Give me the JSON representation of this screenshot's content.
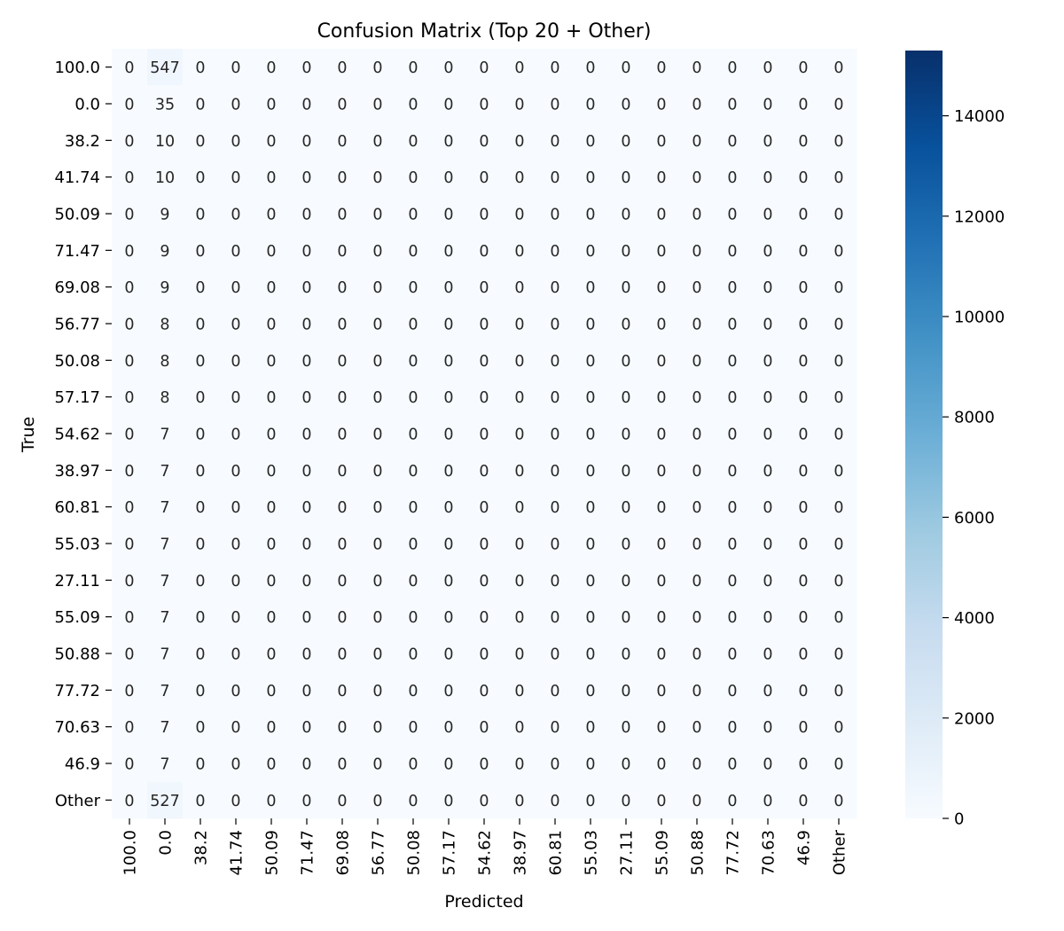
{
  "chart_data": {
    "type": "heatmap",
    "title": "Confusion Matrix (Top 20 + Other)",
    "xlabel": "Predicted",
    "ylabel": "True",
    "row_labels": [
      "100.0",
      "0.0",
      "38.2",
      "41.74",
      "50.09",
      "71.47",
      "69.08",
      "56.77",
      "50.08",
      "57.17",
      "54.62",
      "38.97",
      "60.81",
      "55.03",
      "27.11",
      "55.09",
      "50.88",
      "77.72",
      "70.63",
      "46.9",
      "Other"
    ],
    "col_labels": [
      "100.0",
      "0.0",
      "38.2",
      "41.74",
      "50.09",
      "71.47",
      "69.08",
      "56.77",
      "50.08",
      "57.17",
      "54.62",
      "38.97",
      "60.81",
      "55.03",
      "27.11",
      "55.09",
      "50.88",
      "77.72",
      "70.63",
      "46.9",
      "Other"
    ],
    "matrix": [
      [
        0,
        547,
        0,
        0,
        0,
        0,
        0,
        0,
        0,
        0,
        0,
        0,
        0,
        0,
        0,
        0,
        0,
        0,
        0,
        0,
        0
      ],
      [
        0,
        35,
        0,
        0,
        0,
        0,
        0,
        0,
        0,
        0,
        0,
        0,
        0,
        0,
        0,
        0,
        0,
        0,
        0,
        0,
        0
      ],
      [
        0,
        10,
        0,
        0,
        0,
        0,
        0,
        0,
        0,
        0,
        0,
        0,
        0,
        0,
        0,
        0,
        0,
        0,
        0,
        0,
        0
      ],
      [
        0,
        10,
        0,
        0,
        0,
        0,
        0,
        0,
        0,
        0,
        0,
        0,
        0,
        0,
        0,
        0,
        0,
        0,
        0,
        0,
        0
      ],
      [
        0,
        9,
        0,
        0,
        0,
        0,
        0,
        0,
        0,
        0,
        0,
        0,
        0,
        0,
        0,
        0,
        0,
        0,
        0,
        0,
        0
      ],
      [
        0,
        9,
        0,
        0,
        0,
        0,
        0,
        0,
        0,
        0,
        0,
        0,
        0,
        0,
        0,
        0,
        0,
        0,
        0,
        0,
        0
      ],
      [
        0,
        9,
        0,
        0,
        0,
        0,
        0,
        0,
        0,
        0,
        0,
        0,
        0,
        0,
        0,
        0,
        0,
        0,
        0,
        0,
        0
      ],
      [
        0,
        8,
        0,
        0,
        0,
        0,
        0,
        0,
        0,
        0,
        0,
        0,
        0,
        0,
        0,
        0,
        0,
        0,
        0,
        0,
        0
      ],
      [
        0,
        8,
        0,
        0,
        0,
        0,
        0,
        0,
        0,
        0,
        0,
        0,
        0,
        0,
        0,
        0,
        0,
        0,
        0,
        0,
        0
      ],
      [
        0,
        8,
        0,
        0,
        0,
        0,
        0,
        0,
        0,
        0,
        0,
        0,
        0,
        0,
        0,
        0,
        0,
        0,
        0,
        0,
        0
      ],
      [
        0,
        7,
        0,
        0,
        0,
        0,
        0,
        0,
        0,
        0,
        0,
        0,
        0,
        0,
        0,
        0,
        0,
        0,
        0,
        0,
        0
      ],
      [
        0,
        7,
        0,
        0,
        0,
        0,
        0,
        0,
        0,
        0,
        0,
        0,
        0,
        0,
        0,
        0,
        0,
        0,
        0,
        0,
        0
      ],
      [
        0,
        7,
        0,
        0,
        0,
        0,
        0,
        0,
        0,
        0,
        0,
        0,
        0,
        0,
        0,
        0,
        0,
        0,
        0,
        0,
        0
      ],
      [
        0,
        7,
        0,
        0,
        0,
        0,
        0,
        0,
        0,
        0,
        0,
        0,
        0,
        0,
        0,
        0,
        0,
        0,
        0,
        0,
        0
      ],
      [
        0,
        7,
        0,
        0,
        0,
        0,
        0,
        0,
        0,
        0,
        0,
        0,
        0,
        0,
        0,
        0,
        0,
        0,
        0,
        0,
        0
      ],
      [
        0,
        7,
        0,
        0,
        0,
        0,
        0,
        0,
        0,
        0,
        0,
        0,
        0,
        0,
        0,
        0,
        0,
        0,
        0,
        0,
        0
      ],
      [
        0,
        7,
        0,
        0,
        0,
        0,
        0,
        0,
        0,
        0,
        0,
        0,
        0,
        0,
        0,
        0,
        0,
        0,
        0,
        0,
        0
      ],
      [
        0,
        7,
        0,
        0,
        0,
        0,
        0,
        0,
        0,
        0,
        0,
        0,
        0,
        0,
        0,
        0,
        0,
        0,
        0,
        0,
        0
      ],
      [
        0,
        7,
        0,
        0,
        0,
        0,
        0,
        0,
        0,
        0,
        0,
        0,
        0,
        0,
        0,
        0,
        0,
        0,
        0,
        0,
        0
      ],
      [
        0,
        7,
        0,
        0,
        0,
        0,
        0,
        0,
        0,
        0,
        0,
        0,
        0,
        0,
        0,
        0,
        0,
        0,
        0,
        0,
        0
      ],
      [
        0,
        527,
        0,
        0,
        0,
        0,
        0,
        0,
        0,
        0,
        0,
        0,
        0,
        0,
        0,
        0,
        0,
        0,
        0,
        0,
        0
      ]
    ],
    "colormap": "Blues",
    "color_range": [
      0,
      15300
    ],
    "colorbar_ticks": [
      0,
      2000,
      4000,
      6000,
      8000,
      10000,
      12000,
      14000
    ],
    "colorbar_tick_labels": [
      "0",
      "2000",
      "4000",
      "6000",
      "8000",
      "10000",
      "12000",
      "14000"
    ],
    "colorbar_stops": [
      "#f7fbff",
      "#deebf7",
      "#c6dbef",
      "#9ecae1",
      "#6baed6",
      "#4292c6",
      "#2171b5",
      "#08519c",
      "#08306b"
    ],
    "text_color_dark": "#262626",
    "text_color_light": "#ffffff"
  }
}
